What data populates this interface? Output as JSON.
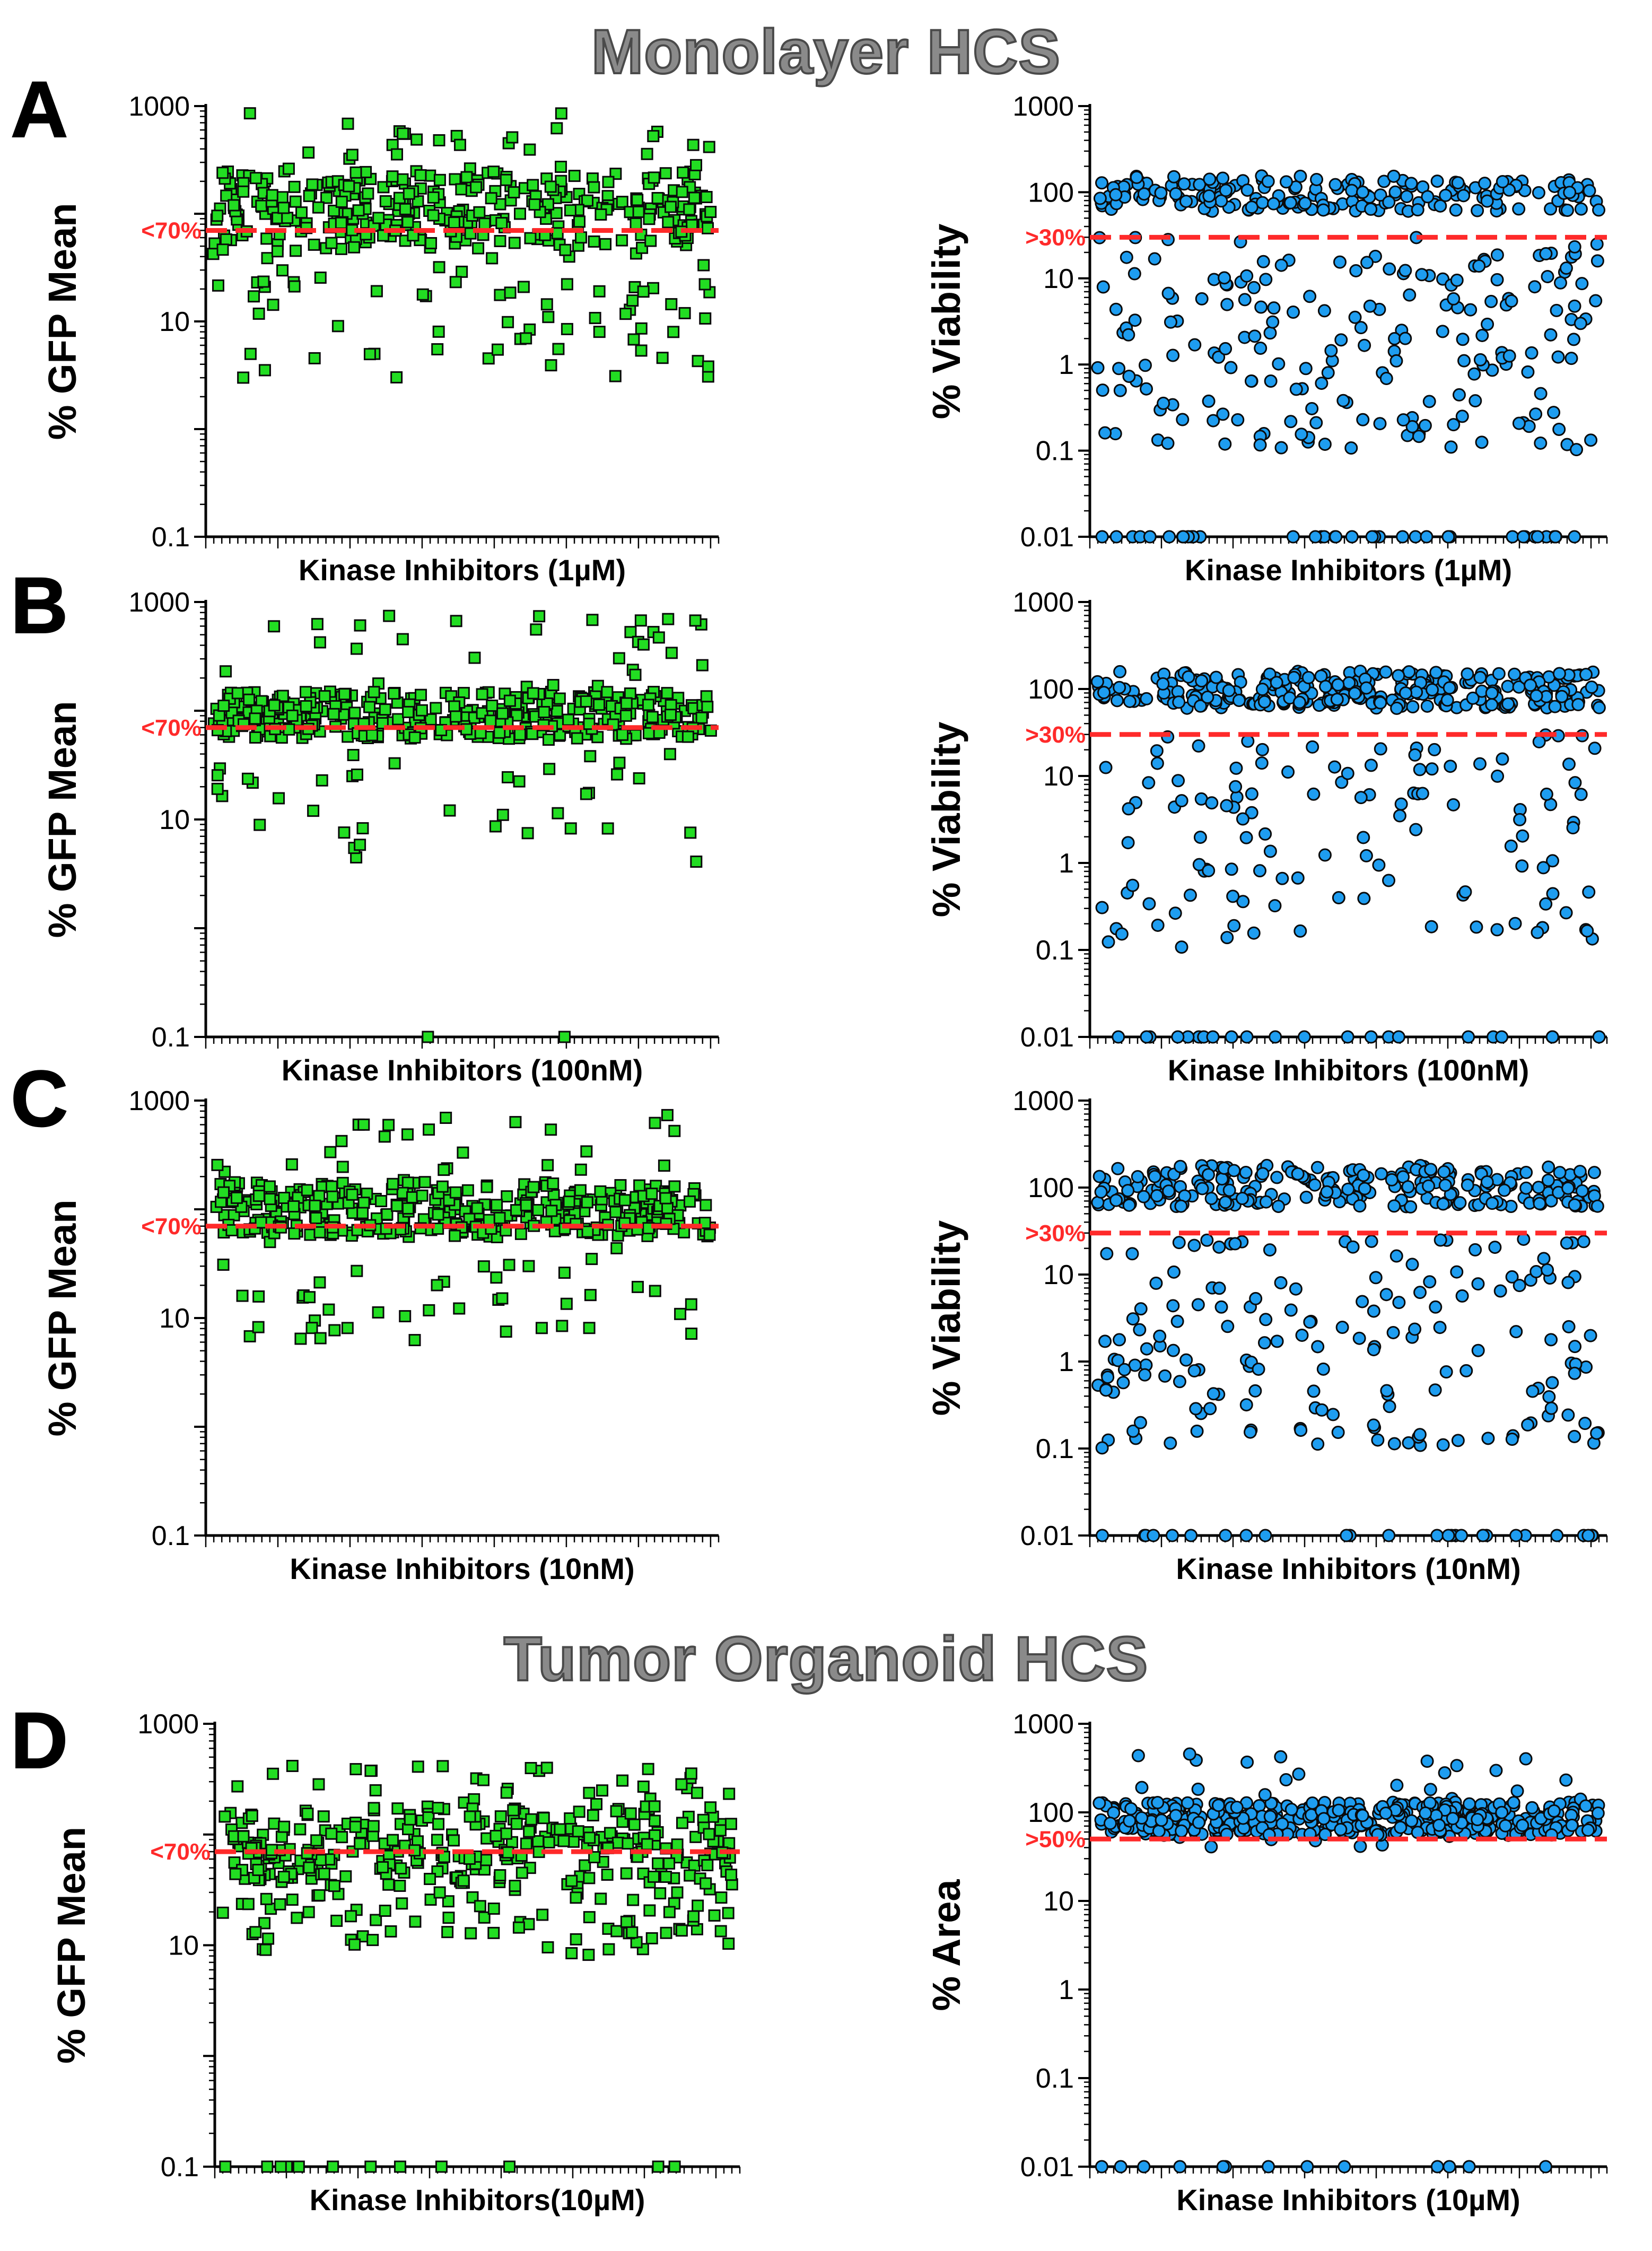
{
  "titles": {
    "monolayer": "Monolayer HCS",
    "organoid": "Tumor Organoid HCS"
  },
  "panel_letters": [
    "A",
    "B",
    "C",
    "D"
  ],
  "colors": {
    "gfp": "#22dd22",
    "viability": "#1e9df0",
    "threshold": "#ff2a2a",
    "marker_edge": "#0a0a0a"
  },
  "chart_data": [
    {
      "id": "A-gfp",
      "type": "scatter",
      "marker": "square",
      "scale": "log",
      "ylim": [
        0.1,
        1000
      ],
      "yticks": [
        "0.1",
        "10",
        "1000"
      ],
      "ylabel": "% GFP Mean",
      "xlabel": "Kinase Inhibitors (1µM)",
      "threshold": {
        "value": 70,
        "label": "<70%"
      },
      "n_compounds": 430,
      "seed": 11,
      "bulk_range": [
        45,
        250
      ],
      "outlier_low": [
        3,
        45
      ],
      "outlier_high": [
        250,
        900
      ],
      "low_fraction": 0.14,
      "high_fraction": 0.08,
      "floor_fraction": 0
    },
    {
      "id": "A-viab",
      "type": "scatter",
      "marker": "circle",
      "scale": "log",
      "ylim": [
        0.01,
        1000
      ],
      "yticks": [
        "0.01",
        "0.1",
        "1",
        "10",
        "100",
        "1000"
      ],
      "ylabel": "% Viability",
      "xlabel": "Kinase Inhibitors (1µM)",
      "threshold": {
        "value": 30,
        "label": ">30%"
      },
      "n_compounds": 430,
      "seed": 23,
      "bulk_range": [
        60,
        140
      ],
      "outlier_low": [
        0.1,
        30
      ],
      "outlier_high": [
        140,
        160
      ],
      "low_fraction": 0.5,
      "high_fraction": 0.02,
      "floor_fraction": 0.08
    },
    {
      "id": "B-gfp",
      "type": "scatter",
      "marker": "square",
      "scale": "log",
      "ylim": [
        0.1,
        1000
      ],
      "yticks": [
        "0.1",
        "10",
        "1000"
      ],
      "ylabel": "% GFP Mean",
      "xlabel": "Kinase Inhibitors (100nM)",
      "threshold": {
        "value": 70,
        "label": "<70%"
      },
      "n_compounds": 430,
      "seed": 37,
      "bulk_range": [
        55,
        150
      ],
      "outlier_low": [
        4,
        55
      ],
      "outlier_high": [
        150,
        750
      ],
      "low_fraction": 0.1,
      "high_fraction": 0.08,
      "floor_fraction": 0.006
    },
    {
      "id": "B-viab",
      "type": "scatter",
      "marker": "circle",
      "scale": "log",
      "ylim": [
        0.01,
        1000
      ],
      "yticks": [
        "0.01",
        "0.1",
        "1",
        "10",
        "100",
        "1000"
      ],
      "ylabel": "% Viability",
      "xlabel": "Kinase Inhibitors (100nM)",
      "threshold": {
        "value": 30,
        "label": ">30%"
      },
      "n_compounds": 430,
      "seed": 41,
      "bulk_range": [
        60,
        150
      ],
      "outlier_low": [
        0.1,
        30
      ],
      "outlier_high": [
        150,
        160
      ],
      "low_fraction": 0.3,
      "high_fraction": 0.02,
      "floor_fraction": 0.05
    },
    {
      "id": "C-gfp",
      "type": "scatter",
      "marker": "square",
      "scale": "log",
      "ylim": [
        0.1,
        1000
      ],
      "yticks": [
        "0.1",
        "10",
        "1000"
      ],
      "ylabel": "% GFP Mean",
      "xlabel": "Kinase Inhibitors (10nM)",
      "threshold": {
        "value": 70,
        "label": "<70%"
      },
      "n_compounds": 430,
      "seed": 53,
      "bulk_range": [
        55,
        180
      ],
      "outlier_low": [
        6,
        55
      ],
      "outlier_high": [
        180,
        750
      ],
      "low_fraction": 0.12,
      "high_fraction": 0.07,
      "floor_fraction": 0
    },
    {
      "id": "C-viab",
      "type": "scatter",
      "marker": "circle",
      "scale": "log",
      "ylim": [
        0.01,
        1000
      ],
      "yticks": [
        "0.01",
        "0.1",
        "1",
        "10",
        "100",
        "1000"
      ],
      "ylabel": "% Viability",
      "xlabel": "Kinase Inhibitors (10nM)",
      "threshold": {
        "value": 30,
        "label": ">30%"
      },
      "n_compounds": 430,
      "seed": 67,
      "bulk_range": [
        60,
        170
      ],
      "outlier_low": [
        0.1,
        30
      ],
      "outlier_high": [
        170,
        180
      ],
      "low_fraction": 0.38,
      "high_fraction": 0.02,
      "floor_fraction": 0.05
    },
    {
      "id": "D-gfp",
      "type": "scatter",
      "marker": "square",
      "scale": "log",
      "ylim": [
        0.1,
        1000
      ],
      "yticks": [
        "0.1",
        "10",
        "1000"
      ],
      "ylabel": "% GFP Mean",
      "xlabel": "Kinase Inhibitors(10µM)",
      "threshold": {
        "value": 70,
        "label": "<70%"
      },
      "n_compounds": 430,
      "seed": 79,
      "bulk_range": [
        35,
        180
      ],
      "outlier_low": [
        8,
        35
      ],
      "outlier_high": [
        180,
        420
      ],
      "low_fraction": 0.22,
      "high_fraction": 0.05,
      "floor_fraction": 0.03
    },
    {
      "id": "D-area",
      "type": "scatter",
      "marker": "circle",
      "scale": "log",
      "ylim": [
        0.01,
        1000
      ],
      "yticks": [
        "0.01",
        "0.1",
        "1",
        "10",
        "100",
        "1000"
      ],
      "ylabel": "% Area",
      "xlabel": "Kinase Inhibitors (10µM)",
      "threshold": {
        "value": 50,
        "label": ">50%"
      },
      "n_compounds": 430,
      "seed": 97,
      "bulk_range": [
        55,
        130
      ],
      "outlier_low": [
        40,
        55
      ],
      "outlier_high": [
        130,
        500
      ],
      "low_fraction": 0.02,
      "high_fraction": 0.05,
      "floor_fraction": 0.025
    }
  ]
}
